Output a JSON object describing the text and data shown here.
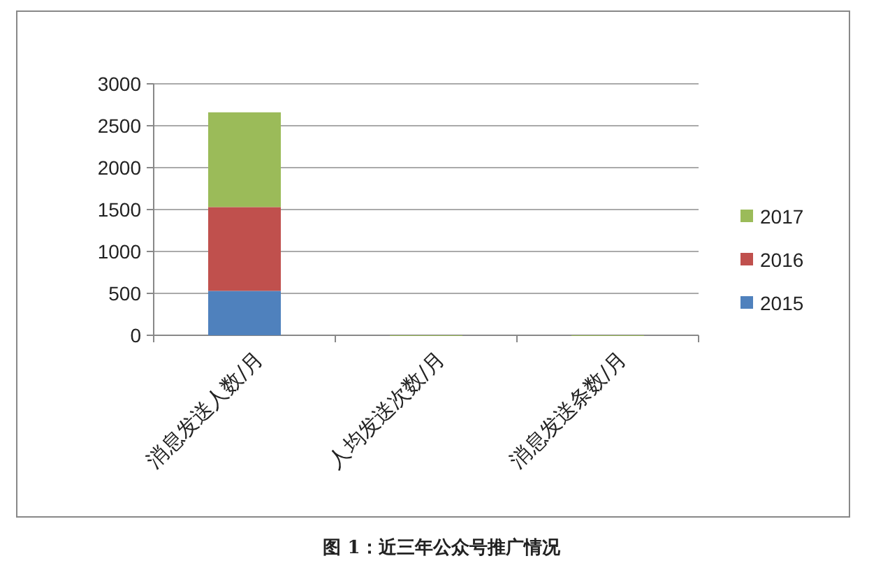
{
  "chart_data": {
    "type": "bar",
    "title": "图 1：近三年公众号推广情况",
    "categories": [
      "消息发送人数/月",
      "人均发送次数/月",
      "消息发送条数/月"
    ],
    "series": [
      {
        "name": "2015",
        "color": "#4f81bd",
        "values": [
          530,
          null,
          null
        ]
      },
      {
        "name": "2016",
        "color": "#c0504d",
        "values": [
          1000,
          null,
          null
        ]
      },
      {
        "name": "2017",
        "color": "#9bbb59",
        "values": [
          1130,
          0,
          0
        ]
      }
    ],
    "stacked": true,
    "ylim": [
      0,
      3000
    ],
    "yticks": [
      0,
      500,
      1000,
      1500,
      2000,
      2500,
      3000
    ],
    "grid": "y",
    "legend": "right"
  }
}
